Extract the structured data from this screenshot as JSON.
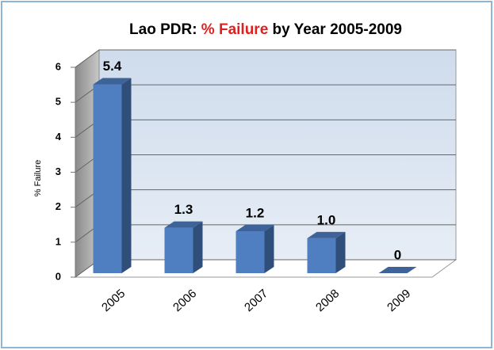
{
  "chart_data": {
    "type": "bar3d",
    "title_parts": [
      {
        "text": "Lao PDR: ",
        "color": "#000000"
      },
      {
        "text": "% Failure",
        "color": "#e02020"
      },
      {
        "text": " by Year 2005-2009",
        "color": "#000000"
      }
    ],
    "y_label": "% Failure",
    "categories": [
      "2005",
      "2006",
      "2007",
      "2008",
      "2009"
    ],
    "values": [
      5.4,
      1.3,
      1.2,
      1.0,
      0
    ],
    "value_labels": [
      "5.4",
      "1.3",
      "1.2",
      "1.0",
      "0"
    ],
    "color": "#4f7fc1",
    "ylim": [
      0,
      6
    ],
    "yticks": [
      0,
      1,
      2,
      3,
      4,
      5,
      6
    ],
    "grid": true
  }
}
